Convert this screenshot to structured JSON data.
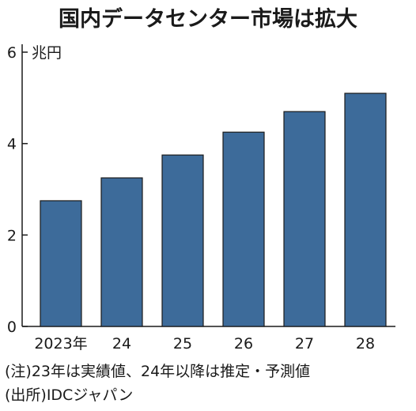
{
  "chart_data": {
    "type": "bar",
    "title": "国内データセンター市場は拡大",
    "unit": "兆円",
    "categories": [
      "2023年",
      "24",
      "25",
      "26",
      "27",
      "28"
    ],
    "values": [
      2.75,
      3.25,
      3.75,
      4.25,
      4.7,
      5.1
    ],
    "ylim": [
      0,
      6
    ],
    "yticks": [
      0,
      2,
      4,
      6
    ],
    "grid": false,
    "bar_color": "#3d6b9a"
  },
  "notes": {
    "note": "(注)23年は実績値、24年以降は推定・予測値",
    "source": "(出所)IDCジャパン"
  }
}
